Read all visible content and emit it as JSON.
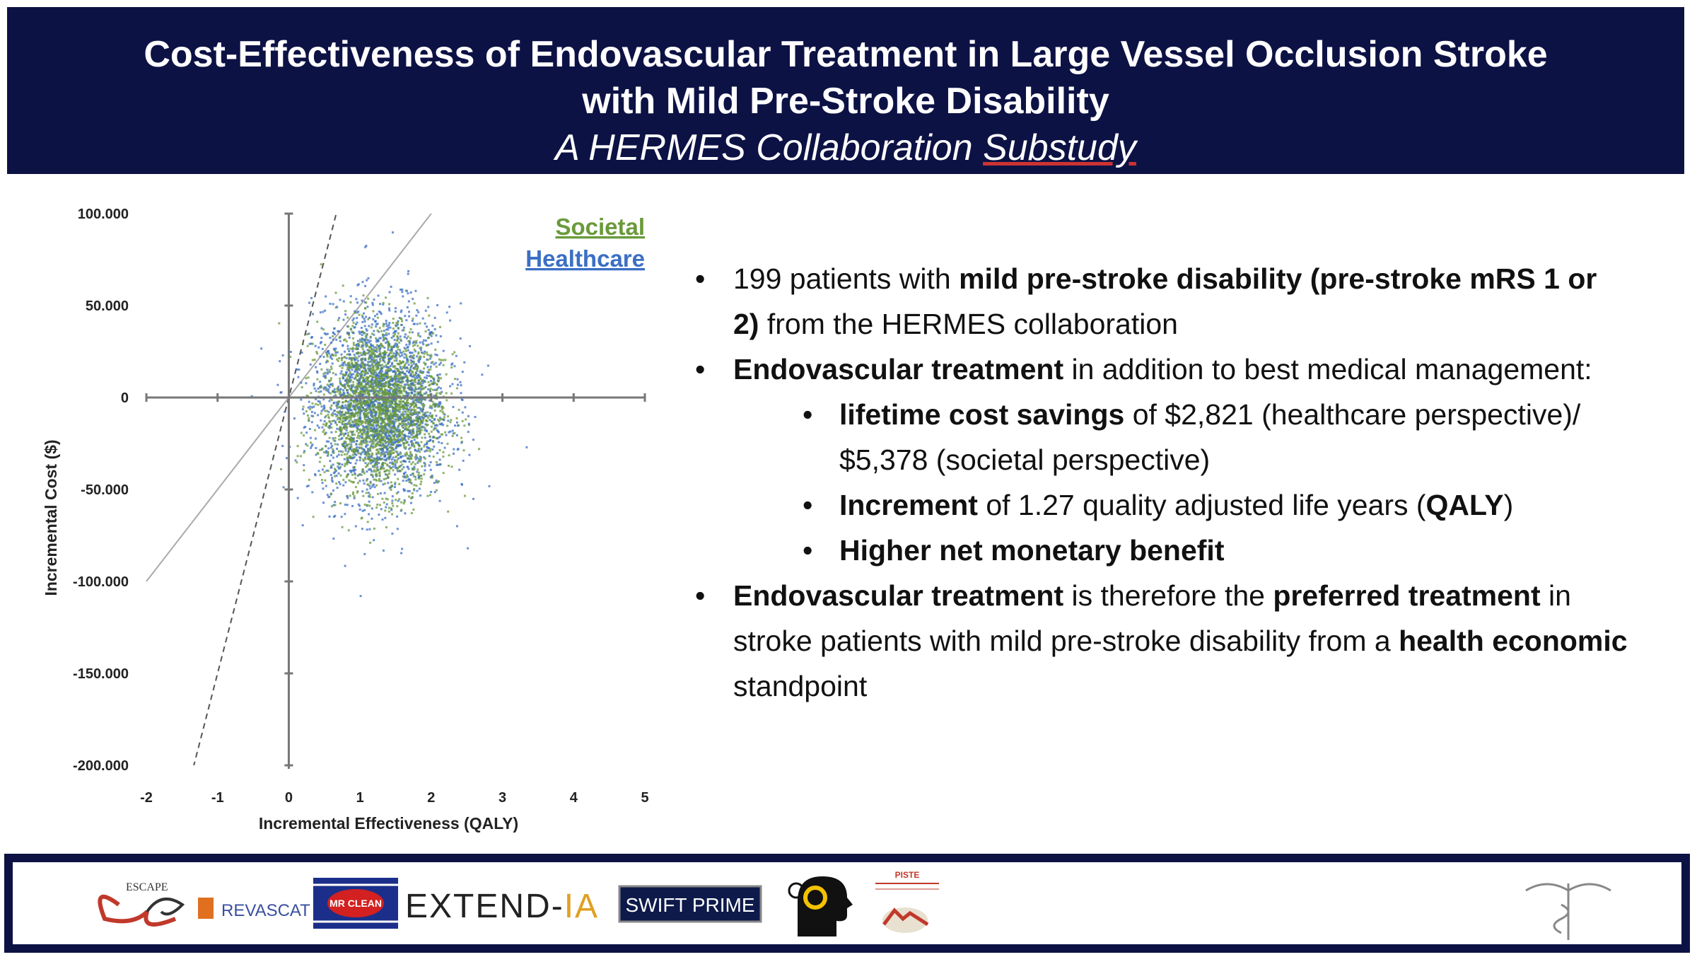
{
  "header": {
    "title_line1": "Cost-Effectiveness of Endovascular Treatment in Large Vessel Occlusion Stroke",
    "title_line2": "with Mild Pre-Stroke Disability",
    "subtitle_part1": "A HERMES Collaboration ",
    "subtitle_part2": "Substudy"
  },
  "chart_data": {
    "type": "scatter",
    "xlabel": "Incremental Effectiveness (QALY)",
    "ylabel": "Incremental Cost ($)",
    "xlim": [
      -2,
      5
    ],
    "ylim": [
      -200000,
      100000
    ],
    "x_ticks": [
      "-2",
      "-1",
      "0",
      "1",
      "2",
      "3",
      "4",
      "5"
    ],
    "y_ticks": [
      "100.000",
      "50.000",
      "0",
      "-50.000",
      "-100.000",
      "-150.000",
      "-200.000"
    ],
    "series": [
      {
        "name": "Societal",
        "color": "#6a9a3a",
        "center": [
          1.27,
          -5378
        ],
        "spread": [
          0.42,
          22000
        ]
      },
      {
        "name": "Healthcare",
        "color": "#3b6fc4",
        "center": [
          1.27,
          -2821
        ],
        "spread": [
          0.48,
          26000
        ]
      }
    ],
    "threshold_lines": [
      {
        "style": "dashed",
        "color": "#555555",
        "slope_per_qaly": 150000
      },
      {
        "style": "solid",
        "color": "#aaaaaa",
        "slope_per_qaly": 50000
      }
    ]
  },
  "bullets": {
    "b1_pre": "199 patients with ",
    "b1_bold": "mild pre-stroke disability (pre-stroke mRS 1 or 2)",
    "b1_post": " from the HERMES collaboration",
    "b2_bold": "Endovascular treatment",
    "b2_post": " in addition to best medical management:",
    "s1_bold": "lifetime cost savings",
    "s1_post": " of $2,821 (healthcare perspective)/ $5,378 (societal perspective)",
    "s2_bold": "Increment",
    "s2_mid": " of 1.27 quality adjusted life years (",
    "s2_bold2": "QALY",
    "s2_post": ")",
    "s3_bold": "Higher net monetary benefit",
    "b3_bold": "Endovascular treatment",
    "b3_mid": " is therefore the ",
    "b3_bold2": "preferred treatment",
    "b3_mid2": " in stroke patients with mild pre-stroke disability from a ",
    "b3_bold3": "health economic",
    "b3_post": " standpoint"
  },
  "footer": {
    "logos": [
      "ESCAPE",
      "REVASCAT",
      "MR CLEAN",
      "EXTEND-IA",
      "SWIFT PRIME",
      "THRACE",
      "PISTE"
    ],
    "escape_text": "ESCAPE",
    "revascat_text": "REVASCAT",
    "mrclean_text": "MR CLEAN",
    "extend_text": "EXTEND-",
    "extend_ia": "IA",
    "swift_text": "SWIFT PRIME",
    "piste_text": "PISTE"
  }
}
